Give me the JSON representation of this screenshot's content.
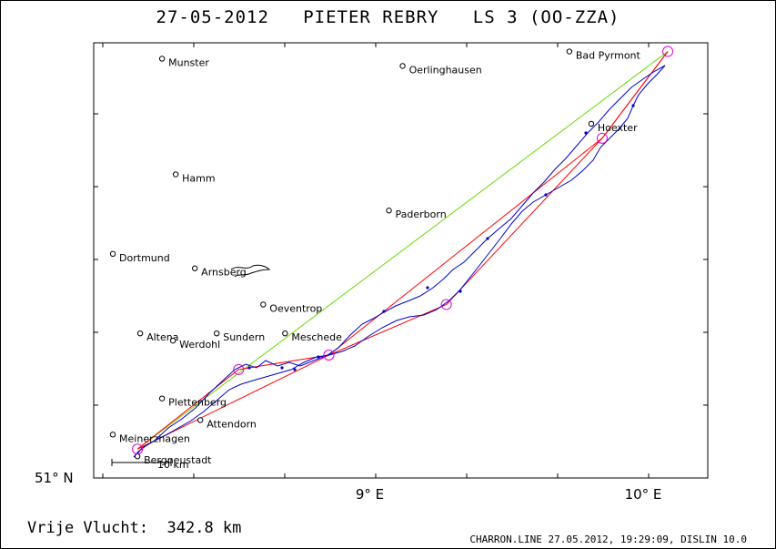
{
  "header": {
    "title": "27-05-2012   PIETER REBRY   LS 3 (OO-ZZA)"
  },
  "footer": {
    "distance_text": "Vrije Vlucht:  342.8 km",
    "source_text": "CHARRON.LINE 27.05.2012, 19:29:09, DISLIN 10.0"
  },
  "axes": {
    "lat_label": "51° N",
    "lon_labels": [
      "9° E",
      "10° E"
    ]
  },
  "scale_bar": {
    "label": "10 km"
  },
  "colors": {
    "track": "#0000cc",
    "task_line": "#ff0000",
    "free_flight_line": "#66dd00",
    "turnpoint": "#dd00dd",
    "frame": "#000000"
  },
  "cities": [
    {
      "name": "Munster",
      "lon": 8.24,
      "lat": 51.58
    },
    {
      "name": "Oerlinghausen",
      "lon": 9.12,
      "lat": 51.57
    },
    {
      "name": "Bad Pyrmont",
      "lon": 9.73,
      "lat": 51.59
    },
    {
      "name": "Hamm",
      "lon": 8.29,
      "lat": 51.42
    },
    {
      "name": "Hoexter",
      "lon": 9.81,
      "lat": 51.49
    },
    {
      "name": "Paderborn",
      "lon": 9.07,
      "lat": 51.37
    },
    {
      "name": "Dortmund",
      "lon": 8.06,
      "lat": 51.31
    },
    {
      "name": "Arnsberg",
      "lon": 8.36,
      "lat": 51.29
    },
    {
      "name": "Oeventrop",
      "lon": 8.61,
      "lat": 51.24
    },
    {
      "name": "Altena",
      "lon": 8.16,
      "lat": 51.2
    },
    {
      "name": "Werdohl",
      "lon": 8.28,
      "lat": 51.19
    },
    {
      "name": "Sundern",
      "lon": 8.44,
      "lat": 51.2
    },
    {
      "name": "Meschede",
      "lon": 8.69,
      "lat": 51.2
    },
    {
      "name": "Plettenberg",
      "lon": 8.24,
      "lat": 51.11
    },
    {
      "name": "Attendorn",
      "lon": 8.38,
      "lat": 51.08
    },
    {
      "name": "Meinerzhagen",
      "lon": 8.06,
      "lat": 51.06
    },
    {
      "name": "Bergneustadt",
      "lon": 8.15,
      "lat": 51.03
    }
  ],
  "turnpoints": [
    {
      "lon": 8.15,
      "lat": 51.04
    },
    {
      "lon": 8.52,
      "lat": 51.15
    },
    {
      "lon": 8.85,
      "lat": 51.17
    },
    {
      "lon": 9.28,
      "lat": 51.24
    },
    {
      "lon": 9.85,
      "lat": 51.47
    },
    {
      "lon": 10.09,
      "lat": 51.59
    }
  ]
}
